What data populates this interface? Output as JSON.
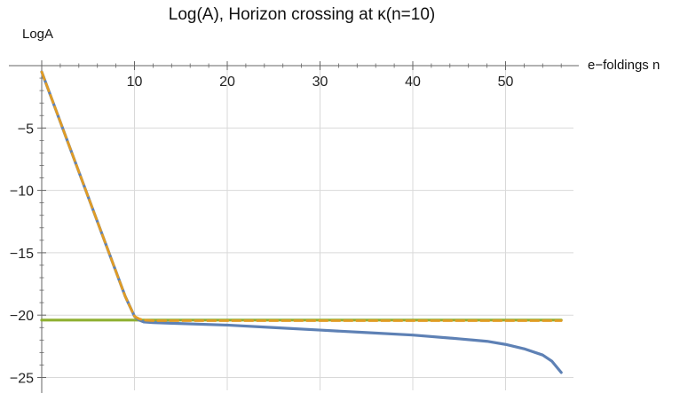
{
  "chart_data": {
    "type": "line",
    "title": "Log(A), Horizon crossing at κ(n=10)",
    "xlabel": "e−foldings n",
    "ylabel": "LogA",
    "xlim": [
      0,
      57
    ],
    "ylim": [
      -25.7,
      0.4
    ],
    "x_ticks": [
      10,
      20,
      30,
      40,
      50
    ],
    "x_tick_labels": [
      "10",
      "20",
      "30",
      "40",
      "50"
    ],
    "y_ticks": [
      -5,
      -10,
      -15,
      -20,
      -25
    ],
    "y_tick_labels": [
      "−5",
      "−10",
      "−15",
      "−20",
      "−25"
    ],
    "x_minor_step": 2,
    "grid": true,
    "series": [
      {
        "color": "#5E81B5",
        "style": "solid",
        "x": [
          0,
          2,
          4,
          6,
          8,
          9,
          10,
          10.5,
          11,
          12,
          14,
          20,
          25,
          30,
          35,
          40,
          45,
          48,
          50,
          52,
          54,
          55,
          56
        ],
        "y": [
          -0.5,
          -4.5,
          -8.5,
          -12.5,
          -16.5,
          -18.5,
          -20.1,
          -20.4,
          -20.55,
          -20.6,
          -20.65,
          -20.8,
          -21.0,
          -21.2,
          -21.4,
          -21.6,
          -21.9,
          -22.1,
          -22.35,
          -22.7,
          -23.2,
          -23.7,
          -24.6
        ]
      },
      {
        "color": "#E19C24",
        "style": "dashed",
        "x": [
          0,
          2,
          4,
          6,
          8,
          9,
          10,
          10.5,
          11,
          12,
          20,
          30,
          40,
          50,
          56
        ],
        "y": [
          -0.5,
          -4.5,
          -8.5,
          -12.5,
          -16.5,
          -18.5,
          -20.1,
          -20.3,
          -20.4,
          -20.45,
          -20.45,
          -20.45,
          -20.45,
          -20.45,
          -20.45
        ]
      },
      {
        "color": "#8FB032",
        "style": "solid",
        "x": [
          0,
          56
        ],
        "y": [
          -20.4,
          -20.4
        ]
      }
    ]
  }
}
